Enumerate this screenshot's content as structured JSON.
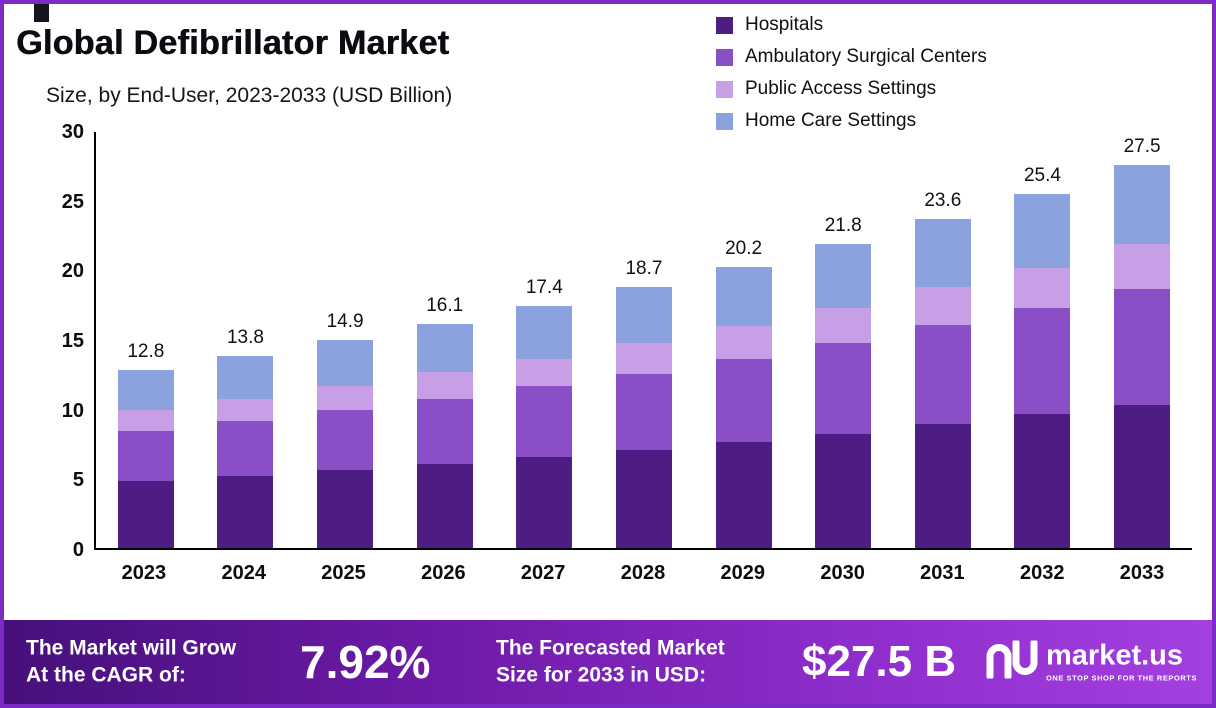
{
  "header": {
    "title": "Global Defibrillator Market",
    "subtitle": "Size, by End-User, 2023-2033 (USD Billion)"
  },
  "chart_data": {
    "type": "bar",
    "stacked": true,
    "title": "Global Defibrillator Market Size, by End-User, 2023-2033 (USD Billion)",
    "categories": [
      "2023",
      "2024",
      "2025",
      "2026",
      "2027",
      "2028",
      "2029",
      "2030",
      "2031",
      "2032",
      "2033"
    ],
    "series": [
      {
        "name": "Hospitals",
        "color": "#4d1d84",
        "values": [
          4.8,
          5.2,
          5.6,
          6.0,
          6.5,
          7.0,
          7.6,
          8.2,
          8.9,
          9.6,
          10.3
        ]
      },
      {
        "name": "Ambulatory Surgical Centers",
        "color": "#8a4fc6",
        "values": [
          3.6,
          3.9,
          4.3,
          4.7,
          5.1,
          5.5,
          6.0,
          6.5,
          7.1,
          7.6,
          8.3
        ]
      },
      {
        "name": "Public Access Settings",
        "color": "#c79fe6",
        "values": [
          1.5,
          1.6,
          1.7,
          1.9,
          2.0,
          2.2,
          2.3,
          2.5,
          2.7,
          2.9,
          3.2
        ]
      },
      {
        "name": "Home Care Settings",
        "color": "#8ba2de",
        "values": [
          2.9,
          3.1,
          3.3,
          3.5,
          3.8,
          4.0,
          4.3,
          4.6,
          4.9,
          5.3,
          5.7
        ]
      }
    ],
    "totals": [
      12.8,
      13.8,
      14.9,
      16.1,
      17.4,
      18.7,
      20.2,
      21.8,
      23.6,
      25.4,
      27.5
    ],
    "ylim": [
      0,
      30
    ],
    "yticks": [
      0,
      5,
      10,
      15,
      20,
      25,
      30
    ],
    "grid": false,
    "legend_position": "top-right"
  },
  "footer": {
    "cagr_label": "The Market will Grow\nAt the CAGR of:",
    "cagr_value": "7.92%",
    "forecast_label": "The Forecasted Market\nSize for 2033 in USD:",
    "forecast_value": "$27.5 B",
    "brand": "market.us",
    "brand_tagline": "ONE STOP SHOP FOR THE REPORTS"
  },
  "colors": {
    "frame_border": "#7c2bc4",
    "footer_gradient_start": "#45107a",
    "footer_gradient_end": "#a43fe0"
  }
}
